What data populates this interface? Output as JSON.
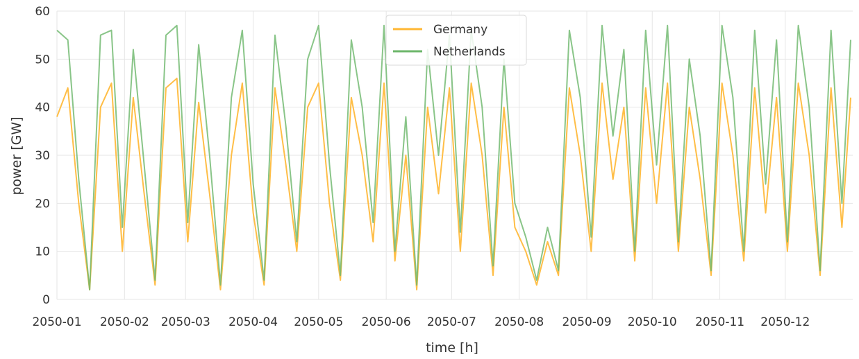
{
  "chart_data": {
    "type": "line",
    "title": "",
    "xlabel": "time [h]",
    "ylabel": "power [GW]",
    "ylim": [
      0,
      60
    ],
    "xlim": [
      "2050-01-01T00:00",
      "2050-12-31T23:00"
    ],
    "grid": true,
    "legend_position": "top-center",
    "y_ticks": [
      "0",
      "10",
      "20",
      "30",
      "40",
      "50",
      "60"
    ],
    "x_ticks": [
      {
        "date": "2050-01-01",
        "label": "2050-01"
      },
      {
        "date": "2050-02-01",
        "label": "2050-02"
      },
      {
        "date": "2050-03-01",
        "label": "2050-03"
      },
      {
        "date": "2050-04-01",
        "label": "2050-04"
      },
      {
        "date": "2050-05-01",
        "label": "2050-05"
      },
      {
        "date": "2050-06-01",
        "label": "2050-06"
      },
      {
        "date": "2050-07-01",
        "label": "2050-07"
      },
      {
        "date": "2050-08-01",
        "label": "2050-08"
      },
      {
        "date": "2050-09-01",
        "label": "2050-09"
      },
      {
        "date": "2050-10-01",
        "label": "2050-10"
      },
      {
        "date": "2050-11-01",
        "label": "2050-11"
      },
      {
        "date": "2050-12-01",
        "label": "2050-12"
      }
    ],
    "series": [
      {
        "name": "Germany",
        "color": "#ffb733",
        "x": [
          "2050-01-01",
          "2050-01-06",
          "2050-01-11",
          "2050-01-16",
          "2050-01-21",
          "2050-01-26",
          "2050-01-31",
          "2050-02-05",
          "2050-02-10",
          "2050-02-15",
          "2050-02-20",
          "2050-02-25",
          "2050-03-02",
          "2050-03-07",
          "2050-03-12",
          "2050-03-17",
          "2050-03-22",
          "2050-03-27",
          "2050-04-01",
          "2050-04-06",
          "2050-04-11",
          "2050-04-16",
          "2050-04-21",
          "2050-04-26",
          "2050-05-01",
          "2050-05-06",
          "2050-05-11",
          "2050-05-16",
          "2050-05-21",
          "2050-05-26",
          "2050-05-31",
          "2050-06-05",
          "2050-06-10",
          "2050-06-15",
          "2050-06-20",
          "2050-06-25",
          "2050-06-30",
          "2050-07-05",
          "2050-07-10",
          "2050-07-15",
          "2050-07-20",
          "2050-07-25",
          "2050-07-30",
          "2050-08-04",
          "2050-08-09",
          "2050-08-14",
          "2050-08-19",
          "2050-08-24",
          "2050-08-29",
          "2050-09-03",
          "2050-09-08",
          "2050-09-13",
          "2050-09-18",
          "2050-09-23",
          "2050-09-28",
          "2050-10-03",
          "2050-10-08",
          "2050-10-13",
          "2050-10-18",
          "2050-10-23",
          "2050-10-28",
          "2050-11-02",
          "2050-11-07",
          "2050-11-12",
          "2050-11-17",
          "2050-11-22",
          "2050-11-27",
          "2050-12-02",
          "2050-12-07",
          "2050-12-12",
          "2050-12-17",
          "2050-12-22",
          "2050-12-27",
          "2050-12-31"
        ],
        "values": [
          38,
          44,
          20,
          2,
          40,
          45,
          10,
          42,
          22,
          3,
          44,
          46,
          12,
          41,
          22,
          2,
          30,
          45,
          18,
          3,
          44,
          28,
          10,
          40,
          45,
          20,
          4,
          42,
          30,
          12,
          45,
          8,
          30,
          2,
          40,
          22,
          44,
          10,
          45,
          30,
          5,
          40,
          15,
          10,
          3,
          12,
          5,
          44,
          30,
          10,
          45,
          25,
          40,
          8,
          44,
          20,
          45,
          10,
          40,
          25,
          5,
          45,
          30,
          8,
          44,
          18,
          42,
          10,
          45,
          30,
          5,
          44,
          15,
          42
        ]
      },
      {
        "name": "Netherlands",
        "color": "#6cb66a",
        "x": [
          "2050-01-01",
          "2050-01-06",
          "2050-01-11",
          "2050-01-16",
          "2050-01-21",
          "2050-01-26",
          "2050-01-31",
          "2050-02-05",
          "2050-02-10",
          "2050-02-15",
          "2050-02-20",
          "2050-02-25",
          "2050-03-02",
          "2050-03-07",
          "2050-03-12",
          "2050-03-17",
          "2050-03-22",
          "2050-03-27",
          "2050-04-01",
          "2050-04-06",
          "2050-04-11",
          "2050-04-16",
          "2050-04-21",
          "2050-04-26",
          "2050-05-01",
          "2050-05-06",
          "2050-05-11",
          "2050-05-16",
          "2050-05-21",
          "2050-05-26",
          "2050-05-31",
          "2050-06-05",
          "2050-06-10",
          "2050-06-15",
          "2050-06-20",
          "2050-06-25",
          "2050-06-30",
          "2050-07-05",
          "2050-07-10",
          "2050-07-15",
          "2050-07-20",
          "2050-07-25",
          "2050-07-30",
          "2050-08-04",
          "2050-08-09",
          "2050-08-14",
          "2050-08-19",
          "2050-08-24",
          "2050-08-29",
          "2050-09-03",
          "2050-09-08",
          "2050-09-13",
          "2050-09-18",
          "2050-09-23",
          "2050-09-28",
          "2050-10-03",
          "2050-10-08",
          "2050-10-13",
          "2050-10-18",
          "2050-10-23",
          "2050-10-28",
          "2050-11-02",
          "2050-11-07",
          "2050-11-12",
          "2050-11-17",
          "2050-11-22",
          "2050-11-27",
          "2050-12-02",
          "2050-12-07",
          "2050-12-12",
          "2050-12-17",
          "2050-12-22",
          "2050-12-27",
          "2050-12-31"
        ],
        "values": [
          56,
          54,
          25,
          2,
          55,
          56,
          15,
          52,
          28,
          4,
          55,
          57,
          16,
          53,
          30,
          3,
          42,
          56,
          24,
          4,
          55,
          36,
          12,
          50,
          57,
          28,
          5,
          54,
          40,
          16,
          57,
          10,
          38,
          3,
          52,
          30,
          55,
          14,
          56,
          40,
          7,
          50,
          20,
          13,
          4,
          15,
          6,
          56,
          42,
          13,
          57,
          34,
          52,
          10,
          56,
          28,
          57,
          12,
          50,
          34,
          6,
          57,
          42,
          10,
          56,
          24,
          54,
          12,
          57,
          40,
          6,
          56,
          20,
          54
        ]
      }
    ]
  }
}
